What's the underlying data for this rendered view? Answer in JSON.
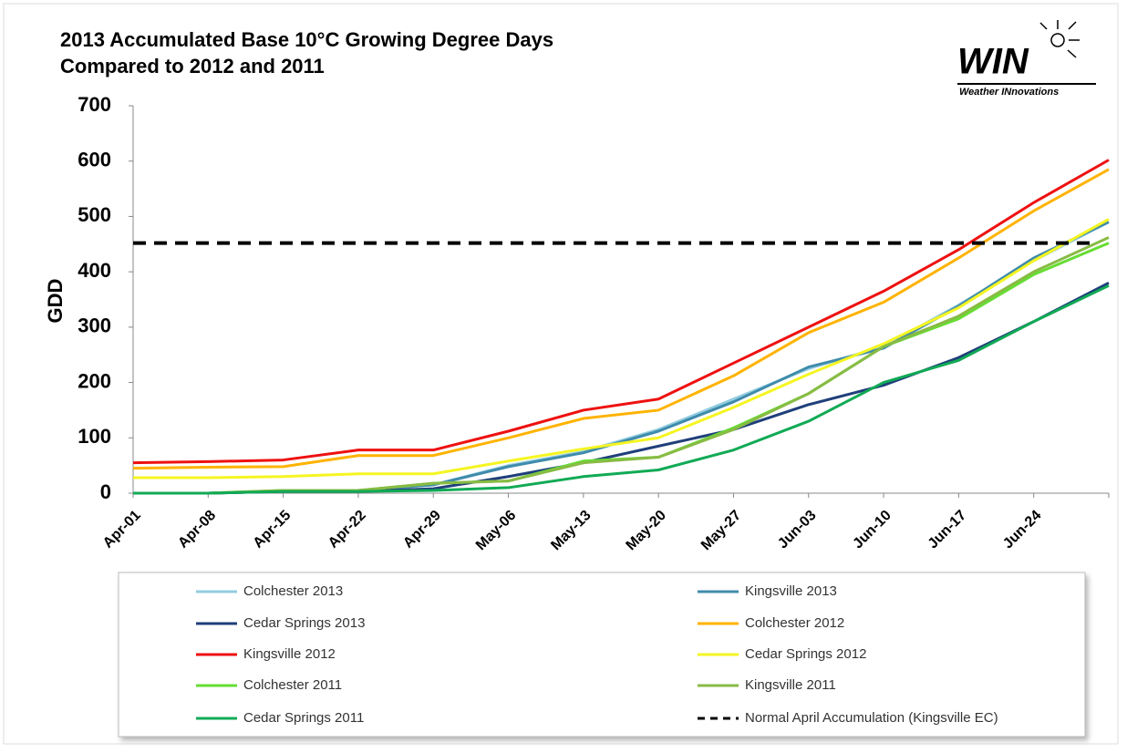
{
  "chart_data": {
    "type": "line",
    "title_lines": [
      "2013 Accumulated Base 10°C Growing Degree Days",
      "Compared to 2012 and 2011"
    ],
    "logo": {
      "mark": "WIN",
      "text": "Weather INnovations"
    },
    "y_label": "GDD",
    "categories": [
      "Apr-01",
      "Apr-08",
      "Apr-15",
      "Apr-22",
      "Apr-29",
      "May-06",
      "May-13",
      "May-20",
      "May-27",
      "Jun-03",
      "Jun-10",
      "Jun-17",
      "Jun-24",
      null
    ],
    "ylim": [
      0,
      700
    ],
    "yticks": [
      0,
      100,
      200,
      300,
      400,
      500,
      600,
      700
    ],
    "series": [
      {
        "name": "Colchester 2013",
        "color": "#92cce0",
        "values": [
          0,
          0,
          3,
          5,
          15,
          50,
          75,
          115,
          170,
          225,
          265,
          340,
          420,
          490
        ]
      },
      {
        "name": "Kingsville 2013",
        "color": "#3f8bab",
        "values": [
          0,
          0,
          3,
          5,
          15,
          48,
          73,
          112,
          165,
          228,
          262,
          338,
          425,
          490
        ]
      },
      {
        "name": "Cedar Springs 2013",
        "color": "#1f3f7a",
        "values": [
          0,
          0,
          3,
          3,
          8,
          30,
          55,
          85,
          115,
          160,
          195,
          245,
          310,
          380
        ]
      },
      {
        "name": "Colchester 2012",
        "color": "#ffb300",
        "values": [
          45,
          47,
          48,
          68,
          68,
          100,
          135,
          150,
          212,
          290,
          345,
          425,
          510,
          585
        ]
      },
      {
        "name": "Kingsville 2012",
        "color": "#ee1111",
        "values": [
          55,
          57,
          60,
          78,
          78,
          112,
          150,
          170,
          235,
          300,
          365,
          440,
          525,
          602
        ]
      },
      {
        "name": "Cedar Springs 2012",
        "color": "#f5f522",
        "values": [
          28,
          28,
          30,
          35,
          35,
          58,
          80,
          100,
          155,
          215,
          270,
          335,
          420,
          495
        ]
      },
      {
        "name": "Colchester 2011",
        "color": "#66dd33",
        "values": [
          0,
          0,
          5,
          5,
          18,
          22,
          58,
          65,
          118,
          180,
          265,
          315,
          395,
          452
        ]
      },
      {
        "name": "Kingsville 2011",
        "color": "#88bb44",
        "values": [
          0,
          0,
          5,
          5,
          18,
          22,
          55,
          65,
          115,
          180,
          265,
          320,
          400,
          462
        ]
      },
      {
        "name": "Cedar Springs 2011",
        "color": "#11aa55",
        "values": [
          0,
          0,
          3,
          3,
          5,
          10,
          30,
          42,
          78,
          130,
          200,
          240,
          310,
          375
        ]
      }
    ],
    "reference_line": {
      "name": "Normal April Accumulation (Kingsville EC)",
      "value": 452,
      "color": "#000000",
      "dashed": true
    }
  }
}
